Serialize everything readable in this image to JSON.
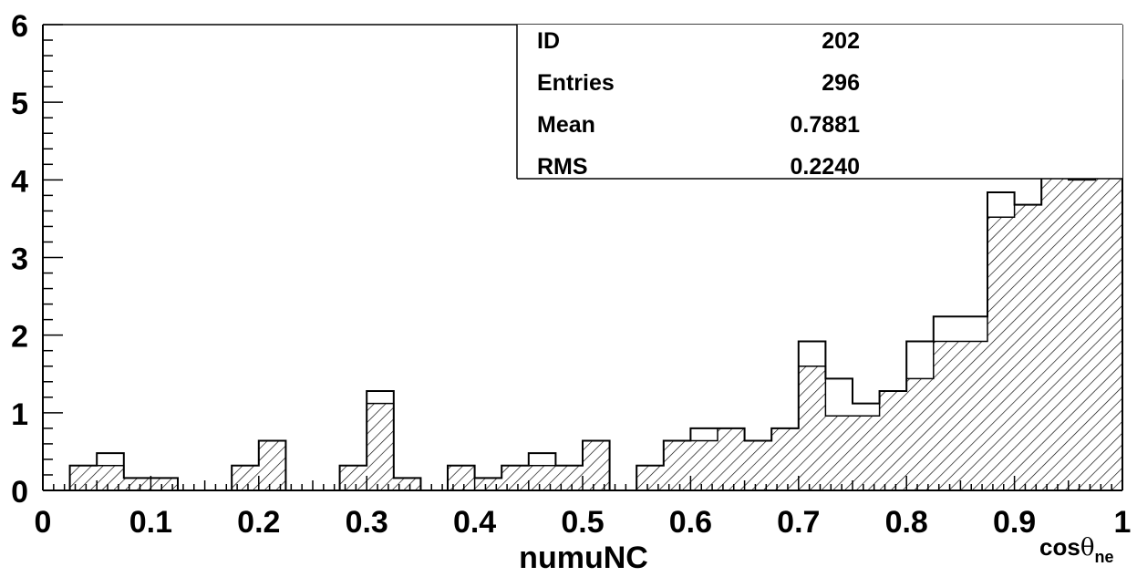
{
  "chart_data": {
    "type": "bar",
    "bin_edges": [
      0.025,
      0.05,
      0.075,
      0.1,
      0.125,
      0.15,
      0.175,
      0.2,
      0.225,
      0.25,
      0.275,
      0.3,
      0.325,
      0.35,
      0.375,
      0.4,
      0.425,
      0.45,
      0.475,
      0.5,
      0.525,
      0.55,
      0.575,
      0.6,
      0.625,
      0.65,
      0.675,
      0.7,
      0.725,
      0.75,
      0.775,
      0.8,
      0.825,
      0.85,
      0.875,
      0.9,
      0.925,
      0.95,
      0.975,
      1.0
    ],
    "series": [
      {
        "values": [
          0.32,
          0.48,
          0.16,
          0.16,
          0,
          0,
          0.32,
          0.64,
          0,
          0,
          0.32,
          1.28,
          0.16,
          0,
          0.32,
          0.16,
          0.32,
          0.48,
          0.32,
          0.64,
          0,
          0.32,
          0.64,
          0.8,
          0.8,
          0.64,
          0.8,
          1.92,
          1.44,
          1.12,
          1.28,
          1.92,
          2.24,
          2.24,
          3.84,
          3.68,
          5.44,
          4.48,
          5.28
        ]
      },
      {
        "values": [
          0.32,
          0.32,
          0.16,
          0.16,
          0,
          0,
          0.32,
          0.64,
          0,
          0,
          0.32,
          1.12,
          0.16,
          0,
          0.32,
          0.16,
          0.32,
          0.32,
          0.32,
          0.64,
          0,
          0.32,
          0.64,
          0.64,
          0.8,
          0.64,
          0.8,
          1.6,
          0.96,
          0.96,
          1.28,
          1.44,
          1.92,
          1.92,
          3.52,
          3.68,
          4.48,
          4.0,
          4.64
        ],
        "fill": "hatched"
      }
    ],
    "xlim": [
      0,
      1
    ],
    "ylim": [
      0,
      6
    ],
    "x_ticks": [
      "0",
      "0.1",
      "0.2",
      "0.3",
      "0.4",
      "0.5",
      "0.6",
      "0.7",
      "0.8",
      "0.9",
      "1"
    ],
    "y_ticks": [
      "0",
      "1",
      "2",
      "3",
      "4",
      "5",
      "6"
    ],
    "xlabel": "numuNC",
    "xlabel_right": {
      "base": "cos",
      "theta": "θ",
      "sub": "ne"
    },
    "stats_box": {
      "placement": "top-right",
      "rows": [
        {
          "label": "ID",
          "value": "202"
        },
        {
          "label": "Entries",
          "value": "296"
        },
        {
          "label": "Mean",
          "value": "0.7881"
        },
        {
          "label": "RMS",
          "value": "0.2240"
        }
      ]
    },
    "colors": {
      "line": "#000000",
      "background": "#ffffff"
    }
  }
}
